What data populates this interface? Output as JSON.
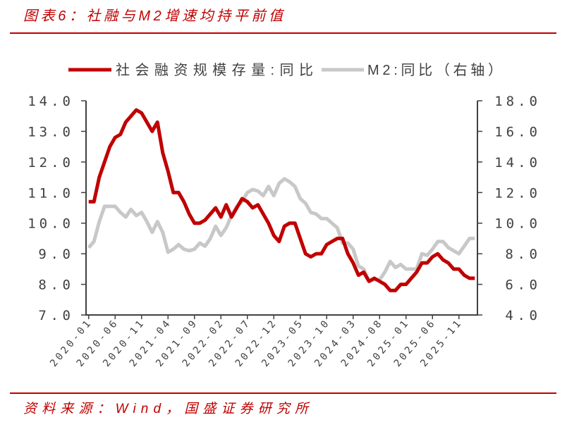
{
  "figure": {
    "title": "图表6：社融与M2增速均持平前值",
    "source": "资料来源：Wind，国盛证券研究所"
  },
  "colors": {
    "accent": "#C00000",
    "axis": "#404040",
    "label_text": "#404040"
  },
  "chart_data": {
    "type": "line",
    "x": [
      "2020-01",
      "2020-02",
      "2020-03",
      "2020-04",
      "2020-05",
      "2020-06",
      "2020-07",
      "2020-08",
      "2020-09",
      "2020-10",
      "2020-11",
      "2020-12",
      "2021-01",
      "2021-02",
      "2021-03",
      "2021-04",
      "2021-05",
      "2021-06",
      "2021-07",
      "2021-08",
      "2021-09",
      "2021-10",
      "2021-11",
      "2021-12",
      "2022-01",
      "2022-02",
      "2022-03",
      "2022-04",
      "2022-05",
      "2022-06",
      "2022-07",
      "2022-08",
      "2022-09",
      "2022-10",
      "2022-11",
      "2022-12",
      "2023-01",
      "2023-02",
      "2023-03",
      "2023-04",
      "2023-05",
      "2023-06",
      "2023-07",
      "2023-08",
      "2023-09",
      "2023-10",
      "2023-11",
      "2023-12",
      "2024-01",
      "2024-02",
      "2024-03",
      "2024-04",
      "2024-05",
      "2024-06",
      "2024-07",
      "2024-08",
      "2024-09",
      "2024-10",
      "2024-11",
      "2024-12",
      "2025-01",
      "2025-02",
      "2025-03",
      "2025-04",
      "2025-05",
      "2025-06",
      "2025-07",
      "2025-08",
      "2025-09",
      "2025-10",
      "2025-11",
      "2025-12",
      "2026-01",
      "2026-02"
    ],
    "x_tick_labels": [
      "2020-01",
      "2020-06",
      "2020-11",
      "2021-04",
      "2021-09",
      "2022-02",
      "2022-07",
      "2022-12",
      "2023-05",
      "2023-10",
      "2024-03",
      "2024-08",
      "2025-01",
      "2025-06",
      "2025-11"
    ],
    "series": [
      {
        "name": "社会融资规模存量:同比",
        "axis": "left",
        "color": "#C00000",
        "values": [
          10.7,
          10.7,
          11.5,
          12.0,
          12.5,
          12.8,
          12.9,
          13.3,
          13.5,
          13.7,
          13.6,
          13.3,
          13.0,
          13.3,
          12.3,
          11.7,
          11.0,
          11.0,
          10.7,
          10.3,
          10.0,
          10.0,
          10.1,
          10.3,
          10.5,
          10.2,
          10.6,
          10.2,
          10.5,
          10.8,
          10.7,
          10.5,
          10.6,
          10.3,
          10.0,
          9.6,
          9.4,
          9.9,
          10.0,
          10.0,
          9.5,
          9.0,
          8.9,
          9.0,
          9.0,
          9.3,
          9.4,
          9.5,
          9.5,
          9.0,
          8.7,
          8.3,
          8.4,
          8.1,
          8.2,
          8.1,
          8.0,
          7.8,
          7.8,
          8.0,
          8.0,
          8.2,
          8.4,
          8.7,
          8.7,
          8.9,
          9.0,
          8.8,
          8.7,
          8.5,
          8.5,
          8.3,
          8.2,
          8.2
        ]
      },
      {
        "name": "M2:同比（右轴）",
        "axis": "right",
        "color": "#C8C8C8",
        "values": [
          8.4,
          8.8,
          10.1,
          11.1,
          11.1,
          11.1,
          10.7,
          10.4,
          10.9,
          10.5,
          10.7,
          10.1,
          9.4,
          10.1,
          9.4,
          8.1,
          8.3,
          8.6,
          8.3,
          8.2,
          8.3,
          8.7,
          8.5,
          9.0,
          9.8,
          9.2,
          9.7,
          10.5,
          11.1,
          11.4,
          12.0,
          12.2,
          12.1,
          11.8,
          12.4,
          11.8,
          12.6,
          12.9,
          12.7,
          12.4,
          11.6,
          11.3,
          10.7,
          10.6,
          10.3,
          10.3,
          10.0,
          9.7,
          8.7,
          8.7,
          8.3,
          7.2,
          7.0,
          6.2,
          6.3,
          6.3,
          6.8,
          7.5,
          7.1,
          7.3,
          7.0,
          7.0,
          7.0,
          8.0,
          7.9,
          8.3,
          8.8,
          8.8,
          8.4,
          8.2,
          8.0,
          8.5,
          9.0,
          9.0
        ]
      }
    ],
    "y_left": {
      "range": [
        7,
        14
      ],
      "tick_labels": [
        "7.0",
        "8.0",
        "9.0",
        "10.0",
        "11.0",
        "12.0",
        "13.0",
        "14.0"
      ]
    },
    "y_right": {
      "range": [
        4,
        18
      ],
      "tick_labels": [
        "4.0",
        "6.0",
        "8.0",
        "10.0",
        "12.0",
        "14.0",
        "16.0",
        "18.0"
      ]
    },
    "grid": false,
    "legend_position": "top"
  }
}
